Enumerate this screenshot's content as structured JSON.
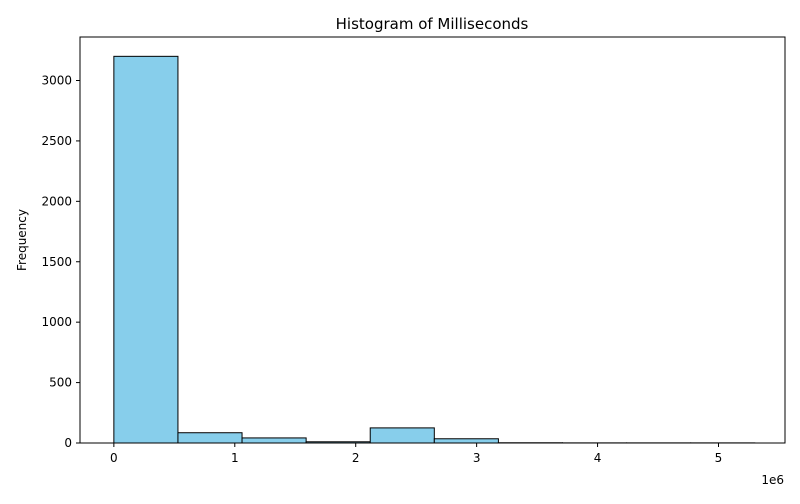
{
  "chart_data": {
    "type": "bar",
    "subtype": "histogram",
    "title": "Histogram of Milliseconds",
    "xlabel": "",
    "ylabel": "Frequency",
    "x_offset_label": "1e6",
    "bin_edges": [
      0,
      530000,
      1060000,
      1590000,
      2120000,
      2650000,
      3180000,
      3710000,
      4240000,
      4770000,
      5300000
    ],
    "values": [
      3200,
      85,
      42,
      10,
      125,
      35,
      2,
      1,
      1,
      1
    ],
    "xlim": [
      -280000,
      5550000
    ],
    "ylim": [
      0,
      3360
    ],
    "xticks": [
      0,
      1000000,
      2000000,
      3000000,
      4000000,
      5000000
    ],
    "xtick_labels": [
      "0",
      "1",
      "2",
      "3",
      "4",
      "5"
    ],
    "yticks": [
      0,
      500,
      1000,
      1500,
      2000,
      2500,
      3000
    ],
    "ytick_labels": [
      "0",
      "500",
      "1000",
      "1500",
      "2000",
      "2500",
      "3000"
    ],
    "bar_color": "#87CEEB",
    "edge_color": "#000000",
    "grid": false
  }
}
